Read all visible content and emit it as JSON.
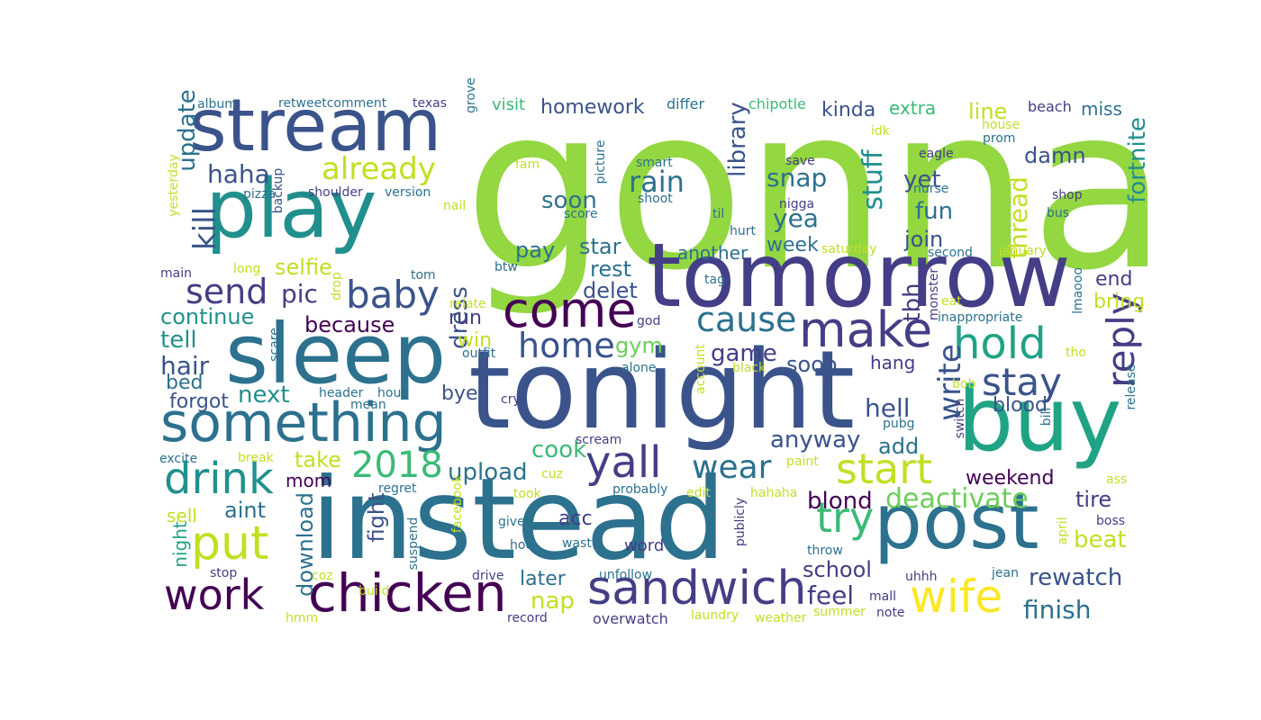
{
  "palette": {
    "dark_purple": "#440154",
    "indigo": "#433e85",
    "blue": "#3a538b",
    "steel_blue": "#2c718e",
    "teal": "#21908d",
    "sea_green": "#20a385",
    "green": "#3aba76",
    "light_green": "#6cce59",
    "lime": "#93d741",
    "yellow_green": "#c2df23",
    "yellow": "#fde725"
  },
  "words": [
    {
      "text": "gonna",
      "color": "#93d741"
    },
    {
      "text": "instead",
      "color": "#2c718e"
    },
    {
      "text": "tonight",
      "color": "#3a538b"
    },
    {
      "text": "tomorrow",
      "color": "#433e85"
    },
    {
      "text": "play",
      "color": "#21908d"
    },
    {
      "text": "sleep",
      "color": "#2c718e"
    },
    {
      "text": "stream",
      "color": "#3a538b"
    },
    {
      "text": "buy",
      "color": "#20a385"
    },
    {
      "text": "post",
      "color": "#2c718e"
    },
    {
      "text": "something",
      "color": "#2c718e"
    },
    {
      "text": "chicken",
      "color": "#440154"
    },
    {
      "text": "sandwich",
      "color": "#433e85"
    },
    {
      "text": "come",
      "color": "#440154"
    },
    {
      "text": "make",
      "color": "#433e85"
    },
    {
      "text": "wife",
      "color": "#fde725"
    },
    {
      "text": "work",
      "color": "#440154"
    },
    {
      "text": "put",
      "color": "#c2df23"
    },
    {
      "text": "yall",
      "color": "#433e85"
    },
    {
      "text": "drink",
      "color": "#21908d"
    },
    {
      "text": "start",
      "color": "#c2df23"
    },
    {
      "text": "hold",
      "color": "#20a385"
    },
    {
      "text": "baby",
      "color": "#3a538b"
    },
    {
      "text": "try",
      "color": "#3aba76"
    },
    {
      "text": "wear",
      "color": "#2c718e"
    },
    {
      "text": "2018",
      "color": "#3aba76"
    },
    {
      "text": "cause",
      "color": "#2c718e"
    },
    {
      "text": "home",
      "color": "#3a538b"
    },
    {
      "text": "stay",
      "color": "#3a538b"
    },
    {
      "text": "already",
      "color": "#c2df23"
    },
    {
      "text": "send",
      "color": "#433e85"
    },
    {
      "text": "reply",
      "color": "#433e85"
    },
    {
      "text": "write",
      "color": "#3a538b"
    },
    {
      "text": "kill",
      "color": "#3a538b"
    },
    {
      "text": "deactivate",
      "color": "#6cce59"
    },
    {
      "text": "haha",
      "color": "#3a538b"
    },
    {
      "text": "upload",
      "color": "#2c718e"
    },
    {
      "text": "anyway",
      "color": "#3a538b"
    },
    {
      "text": "rain",
      "color": "#2c718e"
    },
    {
      "text": "snap",
      "color": "#2c718e"
    },
    {
      "text": "yea",
      "color": "#2c718e"
    },
    {
      "text": "tell",
      "color": "#21908d"
    },
    {
      "text": "hair",
      "color": "#3a538b"
    },
    {
      "text": "cook",
      "color": "#3aba76"
    },
    {
      "text": "take",
      "color": "#c2df23"
    },
    {
      "text": "soon",
      "color": "#2c718e"
    },
    {
      "text": "fun",
      "color": "#2c718e"
    },
    {
      "text": "thread",
      "color": "#c2df23"
    },
    {
      "text": "library",
      "color": "#3a538b"
    },
    {
      "text": "stuff",
      "color": "#21908d"
    },
    {
      "text": "update",
      "color": "#2c718e"
    },
    {
      "text": "fortnite",
      "color": "#21908d"
    },
    {
      "text": "dress",
      "color": "#3a538b"
    },
    {
      "text": "tbh",
      "color": "#433e85"
    },
    {
      "text": "download",
      "color": "#2c718e"
    },
    {
      "text": "fight",
      "color": "#3a538b"
    },
    {
      "text": "rewatch",
      "color": "#3a538b"
    },
    {
      "text": "finish",
      "color": "#2c718e"
    },
    {
      "text": "beat",
      "color": "#c2df23"
    },
    {
      "text": "school",
      "color": "#433e85"
    },
    {
      "text": "feel",
      "color": "#433e85"
    },
    {
      "text": "blond",
      "color": "#440154"
    },
    {
      "text": "tire",
      "color": "#433e85"
    },
    {
      "text": "hell",
      "color": "#3a538b"
    },
    {
      "text": "add",
      "color": "#2c718e"
    },
    {
      "text": "blood",
      "color": "#3a538b"
    },
    {
      "text": "weekend",
      "color": "#440154"
    },
    {
      "text": "selfie",
      "color": "#c2df23"
    },
    {
      "text": "pic",
      "color": "#433e85"
    },
    {
      "text": "continue",
      "color": "#21908d"
    },
    {
      "text": "because",
      "color": "#440154"
    },
    {
      "text": "next",
      "color": "#21908d"
    },
    {
      "text": "forgot",
      "color": "#3a538b"
    },
    {
      "text": "bed",
      "color": "#2c718e"
    },
    {
      "text": "run",
      "color": "#433e85"
    },
    {
      "text": "win",
      "color": "#c2df23"
    },
    {
      "text": "bye",
      "color": "#3a538b"
    },
    {
      "text": "gym",
      "color": "#6cce59"
    },
    {
      "text": "game",
      "color": "#433e85"
    },
    {
      "text": "sooo",
      "color": "#3a538b"
    },
    {
      "text": "hang",
      "color": "#433e85"
    },
    {
      "text": "star",
      "color": "#2c718e"
    },
    {
      "text": "rest",
      "color": "#2c718e"
    },
    {
      "text": "delet",
      "color": "#3a538b"
    },
    {
      "text": "pay",
      "color": "#2c718e"
    },
    {
      "text": "week",
      "color": "#2c718e"
    },
    {
      "text": "another",
      "color": "#2c718e"
    },
    {
      "text": "join",
      "color": "#3a538b"
    },
    {
      "text": "end",
      "color": "#433e85"
    },
    {
      "text": "bring",
      "color": "#c2df23"
    },
    {
      "text": "line",
      "color": "#c2df23"
    },
    {
      "text": "damn",
      "color": "#3a538b"
    },
    {
      "text": "yet",
      "color": "#3a538b"
    },
    {
      "text": "kinda",
      "color": "#3a538b"
    },
    {
      "text": "extra",
      "color": "#3aba76"
    },
    {
      "text": "miss",
      "color": "#2c718e"
    },
    {
      "text": "homework",
      "color": "#3a538b"
    },
    {
      "text": "mom",
      "color": "#440154"
    },
    {
      "text": "aint",
      "color": "#2c718e"
    },
    {
      "text": "sell",
      "color": "#c2df23"
    },
    {
      "text": "acc",
      "color": "#433e85"
    },
    {
      "text": "later",
      "color": "#2c718e"
    },
    {
      "text": "nap",
      "color": "#c2df23"
    },
    {
      "text": "night",
      "color": "#20a385"
    },
    {
      "text": "word",
      "color": "#433e85"
    },
    {
      "text": "overwatch",
      "color": "#433e85"
    },
    {
      "text": "visit",
      "color": "#3aba76"
    },
    {
      "text": "differ",
      "color": "#2c718e"
    },
    {
      "text": "chipotle",
      "color": "#3aba76"
    },
    {
      "text": "beach",
      "color": "#433e85"
    },
    {
      "text": "album",
      "color": "#2c718e"
    },
    {
      "text": "retweetcomment",
      "color": "#2c718e"
    },
    {
      "text": "texas",
      "color": "#433e85"
    },
    {
      "text": "grove",
      "color": "#2c718e"
    },
    {
      "text": "idk",
      "color": "#c2df23"
    },
    {
      "text": "eagle",
      "color": "#433e85"
    },
    {
      "text": "house",
      "color": "#c2df23"
    },
    {
      "text": "prom",
      "color": "#2c718e"
    },
    {
      "text": "smart",
      "color": "#2c718e"
    },
    {
      "text": "save",
      "color": "#433e85"
    },
    {
      "text": "shoot",
      "color": "#2c718e"
    },
    {
      "text": "fam",
      "color": "#c2df23"
    },
    {
      "text": "picture",
      "color": "#2c718e"
    },
    {
      "text": "pizza",
      "color": "#2c718e"
    },
    {
      "text": "shoulder",
      "color": "#433e85"
    },
    {
      "text": "version",
      "color": "#2c718e"
    },
    {
      "text": "nurse",
      "color": "#2c718e"
    },
    {
      "text": "shop",
      "color": "#433e85"
    },
    {
      "text": "bus",
      "color": "#2c718e"
    },
    {
      "text": "backup",
      "color": "#3a538b"
    },
    {
      "text": "nail",
      "color": "#c2df23"
    },
    {
      "text": "score",
      "color": "#2c718e"
    },
    {
      "text": "nigga",
      "color": "#433e85"
    },
    {
      "text": "til",
      "color": "#2c718e"
    },
    {
      "text": "hurt",
      "color": "#2c718e"
    },
    {
      "text": "yesterday",
      "color": "#c2df23"
    },
    {
      "text": "main",
      "color": "#433e85"
    },
    {
      "text": "long",
      "color": "#c2df23"
    },
    {
      "text": "tom",
      "color": "#2c718e"
    },
    {
      "text": "btw",
      "color": "#2c718e"
    },
    {
      "text": "tag",
      "color": "#2c718e"
    },
    {
      "text": "saturday",
      "color": "#c2df23"
    },
    {
      "text": "second",
      "color": "#2c718e"
    },
    {
      "text": "january",
      "color": "#c2df23"
    },
    {
      "text": "drop",
      "color": "#c2df23"
    },
    {
      "text": "relate",
      "color": "#c2df23"
    },
    {
      "text": "god",
      "color": "#433e85"
    },
    {
      "text": "monster",
      "color": "#433e85"
    },
    {
      "text": "eat",
      "color": "#c2df23"
    },
    {
      "text": "inappropriate",
      "color": "#2c718e"
    },
    {
      "text": "lmaooo",
      "color": "#2c718e"
    },
    {
      "text": "outfit",
      "color": "#2c718e"
    },
    {
      "text": "scare",
      "color": "#2c718e"
    },
    {
      "text": "alone",
      "color": "#2c718e"
    },
    {
      "text": "black",
      "color": "#c2df23"
    },
    {
      "text": "tho",
      "color": "#c2df23"
    },
    {
      "text": "header",
      "color": "#2c718e"
    },
    {
      "text": "hour",
      "color": "#2c718e"
    },
    {
      "text": "mean",
      "color": "#2c718e"
    },
    {
      "text": "cry",
      "color": "#433e85"
    },
    {
      "text": "account",
      "color": "#c2df23"
    },
    {
      "text": "bob",
      "color": "#c2df23"
    },
    {
      "text": "pubg",
      "color": "#2c718e"
    },
    {
      "text": "switch",
      "color": "#433e85"
    },
    {
      "text": "bill",
      "color": "#2c718e"
    },
    {
      "text": "release",
      "color": "#2c718e"
    },
    {
      "text": "scream",
      "color": "#433e85"
    },
    {
      "text": "excite",
      "color": "#2c718e"
    },
    {
      "text": "break",
      "color": "#c2df23"
    },
    {
      "text": "paint",
      "color": "#c2df23"
    },
    {
      "text": "ass",
      "color": "#c2df23"
    },
    {
      "text": "regret",
      "color": "#2c718e"
    },
    {
      "text": "cuz",
      "color": "#c2df23"
    },
    {
      "text": "took",
      "color": "#c2df23"
    },
    {
      "text": "probably",
      "color": "#2c718e"
    },
    {
      "text": "edit",
      "color": "#c2df23"
    },
    {
      "text": "hahaha",
      "color": "#c2df23"
    },
    {
      "text": "publicly",
      "color": "#433e85"
    },
    {
      "text": "give",
      "color": "#2c718e"
    },
    {
      "text": "boss",
      "color": "#433e85"
    },
    {
      "text": "april",
      "color": "#c2df23"
    },
    {
      "text": "facebook",
      "color": "#c2df23"
    },
    {
      "text": "hoe",
      "color": "#2c718e"
    },
    {
      "text": "wast",
      "color": "#2c718e"
    },
    {
      "text": "throw",
      "color": "#2c718e"
    },
    {
      "text": "stop",
      "color": "#433e85"
    },
    {
      "text": "coz",
      "color": "#c2df23"
    },
    {
      "text": "suspend",
      "color": "#2c718e"
    },
    {
      "text": "drive",
      "color": "#433e85"
    },
    {
      "text": "unfollow",
      "color": "#2c718e"
    },
    {
      "text": "uhhh",
      "color": "#433e85"
    },
    {
      "text": "jean",
      "color": "#2c718e"
    },
    {
      "text": "mall",
      "color": "#433e85"
    },
    {
      "text": "note",
      "color": "#433e85"
    },
    {
      "text": "summer",
      "color": "#c2df23"
    },
    {
      "text": "weather",
      "color": "#c2df23"
    },
    {
      "text": "laundry",
      "color": "#c2df23"
    },
    {
      "text": "record",
      "color": "#433e85"
    },
    {
      "text": "hmm",
      "color": "#c2df23"
    },
    {
      "text": "build",
      "color": "#c2df23"
    }
  ]
}
